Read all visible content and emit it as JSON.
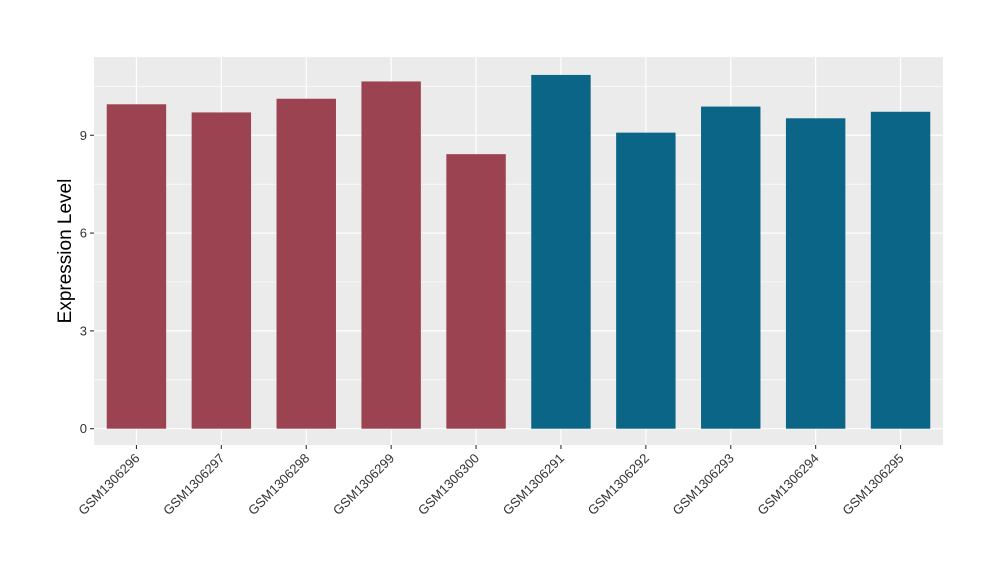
{
  "chart_data": {
    "type": "bar",
    "ylabel": "Expression Level",
    "xlabel": "",
    "ylim": [
      -0.5,
      11.4
    ],
    "yticks": [
      0,
      3,
      6,
      9
    ],
    "grid": true,
    "categories": [
      "GSM1306296",
      "GSM1306297",
      "GSM1306298",
      "GSM1306299",
      "GSM1306300",
      "GSM1306291",
      "GSM1306292",
      "GSM1306293",
      "GSM1306294",
      "GSM1306295"
    ],
    "values": [
      9.95,
      9.7,
      10.12,
      10.65,
      8.42,
      10.85,
      9.08,
      9.88,
      9.52,
      9.72
    ],
    "bar_colors": [
      "#9b4350",
      "#9b4350",
      "#9b4350",
      "#9b4350",
      "#9b4350",
      "#0b6587",
      "#0b6587",
      "#0b6587",
      "#0b6587",
      "#0b6587"
    ],
    "panel_background": "#ebebeb",
    "gridline_color": "#ffffff"
  }
}
